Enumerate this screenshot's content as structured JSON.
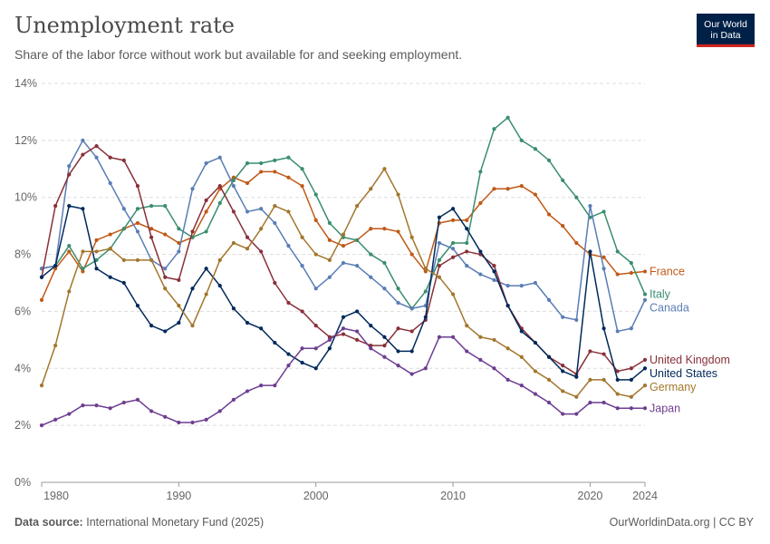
{
  "header": {
    "title": "Unemployment rate",
    "subtitle": "Share of the labor force without work but available for and seeking employment."
  },
  "logo": {
    "line1": "Our World",
    "line2": "in Data"
  },
  "footer": {
    "source_label": "Data source:",
    "source_text": "International Monetary Fund (2025)",
    "credit": "OurWorldinData.org | CC BY"
  },
  "chart_data": {
    "type": "line",
    "title": "Unemployment rate",
    "xlabel": "",
    "ylabel": "",
    "xlim": [
      1980,
      2024
    ],
    "ylim": [
      0,
      14
    ],
    "yticks": [
      0,
      2,
      4,
      6,
      8,
      10,
      12,
      14
    ],
    "ytick_labels": [
      "0%",
      "2%",
      "4%",
      "6%",
      "8%",
      "10%",
      "12%",
      "14%"
    ],
    "xticks": [
      1980,
      1990,
      2000,
      2010,
      2020,
      2024
    ],
    "xtick_labels": [
      "1980",
      "1990",
      "2000",
      "2010",
      "2020",
      "2024"
    ],
    "grid": "horizontal-dashed",
    "legend": "inline-right",
    "x": [
      1980,
      1981,
      1982,
      1983,
      1984,
      1985,
      1986,
      1987,
      1988,
      1989,
      1990,
      1991,
      1992,
      1993,
      1994,
      1995,
      1996,
      1997,
      1998,
      1999,
      2000,
      2001,
      2002,
      2003,
      2004,
      2005,
      2006,
      2007,
      2008,
      2009,
      2010,
      2011,
      2012,
      2013,
      2014,
      2015,
      2016,
      2017,
      2018,
      2019,
      2020,
      2021,
      2022,
      2023,
      2024
    ],
    "series": [
      {
        "name": "France",
        "color": "#c05917",
        "values": [
          6.4,
          7.5,
          8.1,
          7.4,
          8.5,
          8.7,
          8.9,
          9.1,
          8.9,
          8.7,
          8.4,
          8.6,
          9.5,
          10.3,
          10.7,
          10.5,
          10.9,
          10.9,
          10.7,
          10.4,
          9.2,
          8.5,
          8.3,
          8.5,
          8.9,
          8.9,
          8.8,
          8.0,
          7.4,
          9.1,
          9.2,
          9.2,
          9.8,
          10.3,
          10.3,
          10.4,
          10.1,
          9.4,
          9.0,
          8.4,
          8.0,
          7.9,
          7.3,
          7.35,
          7.4
        ]
      },
      {
        "name": "Italy",
        "color": "#3a8e6e",
        "values": [
          7.5,
          7.6,
          8.3,
          7.5,
          7.8,
          8.2,
          8.9,
          9.6,
          9.7,
          9.7,
          8.9,
          8.6,
          8.8,
          9.8,
          10.6,
          11.2,
          11.2,
          11.3,
          11.4,
          11.0,
          10.1,
          9.1,
          8.6,
          8.5,
          8.0,
          7.7,
          6.8,
          6.1,
          6.7,
          7.8,
          8.4,
          8.4,
          10.9,
          12.4,
          12.8,
          12.0,
          11.7,
          11.3,
          10.6,
          10.0,
          9.3,
          9.5,
          8.1,
          7.7,
          6.6
        ]
      },
      {
        "name": "Canada",
        "color": "#5a7db6",
        "values": [
          7.5,
          7.6,
          11.1,
          12.0,
          11.4,
          10.5,
          9.6,
          8.8,
          7.8,
          7.5,
          8.1,
          10.3,
          11.2,
          11.4,
          10.4,
          9.5,
          9.6,
          9.1,
          8.3,
          7.6,
          6.8,
          7.2,
          7.7,
          7.6,
          7.2,
          6.8,
          6.3,
          6.1,
          6.2,
          8.4,
          8.2,
          7.6,
          7.3,
          7.1,
          6.9,
          6.9,
          7.0,
          6.4,
          5.8,
          5.7,
          9.7,
          7.5,
          5.3,
          5.4,
          6.4
        ]
      },
      {
        "name": "United Kingdom",
        "color": "#883039",
        "values": [
          7.2,
          9.7,
          10.8,
          11.5,
          11.8,
          11.4,
          11.3,
          10.4,
          8.6,
          7.2,
          7.1,
          8.8,
          9.9,
          10.4,
          9.5,
          8.6,
          8.1,
          7.0,
          6.3,
          6.0,
          5.5,
          5.1,
          5.2,
          5.0,
          4.8,
          4.8,
          5.4,
          5.3,
          5.7,
          7.6,
          7.9,
          8.1,
          8.0,
          7.6,
          6.2,
          5.4,
          4.9,
          4.4,
          4.1,
          3.8,
          4.6,
          4.5,
          3.9,
          4.0,
          4.3
        ]
      },
      {
        "name": "United States",
        "color": "#00295b",
        "values": [
          7.2,
          7.6,
          9.7,
          9.6,
          7.5,
          7.2,
          7.0,
          6.2,
          5.5,
          5.3,
          5.6,
          6.8,
          7.5,
          6.9,
          6.1,
          5.6,
          5.4,
          4.9,
          4.5,
          4.2,
          4.0,
          4.7,
          5.8,
          6.0,
          5.5,
          5.1,
          4.6,
          4.6,
          5.8,
          9.3,
          9.6,
          8.9,
          8.1,
          7.4,
          6.2,
          5.3,
          4.9,
          4.4,
          3.9,
          3.7,
          8.1,
          5.4,
          3.6,
          3.6,
          4.0
        ]
      },
      {
        "name": "Germany",
        "color": "#a2762c",
        "values": [
          3.4,
          4.8,
          6.7,
          8.1,
          8.1,
          8.2,
          7.8,
          7.8,
          7.8,
          6.8,
          6.2,
          5.5,
          6.6,
          7.8,
          8.4,
          8.2,
          8.9,
          9.7,
          9.5,
          8.6,
          8.0,
          7.8,
          8.7,
          9.7,
          10.3,
          11.0,
          10.1,
          8.6,
          7.5,
          7.2,
          6.6,
          5.5,
          5.1,
          5.0,
          4.7,
          4.4,
          3.9,
          3.6,
          3.2,
          3.0,
          3.6,
          3.6,
          3.1,
          3.0,
          3.4
        ]
      },
      {
        "name": "Japan",
        "color": "#6d3e91",
        "values": [
          2.0,
          2.2,
          2.4,
          2.7,
          2.7,
          2.6,
          2.8,
          2.9,
          2.5,
          2.3,
          2.1,
          2.1,
          2.2,
          2.5,
          2.9,
          3.2,
          3.4,
          3.4,
          4.1,
          4.7,
          4.7,
          5.0,
          5.4,
          5.3,
          4.7,
          4.4,
          4.1,
          3.8,
          4.0,
          5.1,
          5.1,
          4.6,
          4.3,
          4.0,
          3.6,
          3.4,
          3.1,
          2.8,
          2.4,
          2.4,
          2.8,
          2.8,
          2.6,
          2.6,
          2.6
        ]
      }
    ]
  }
}
